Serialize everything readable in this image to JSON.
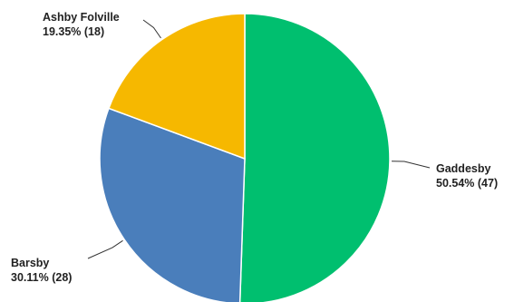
{
  "chart_data": {
    "type": "pie",
    "title": "",
    "slices": [
      {
        "name": "Gaddesby",
        "value": 47,
        "percent": "50.54%",
        "value_label": "(47)",
        "color": "#00bf6f"
      },
      {
        "name": "Barsby",
        "value": 28,
        "percent": "30.11%",
        "value_label": "(28)",
        "color": "#4a7ebb"
      },
      {
        "name": "Ashby Folville",
        "value": 18,
        "percent": "19.35%",
        "value_label": "(18)",
        "color": "#f6b800"
      }
    ],
    "legend": "none",
    "start_angle": "12 o'clock",
    "direction": "clockwise"
  }
}
